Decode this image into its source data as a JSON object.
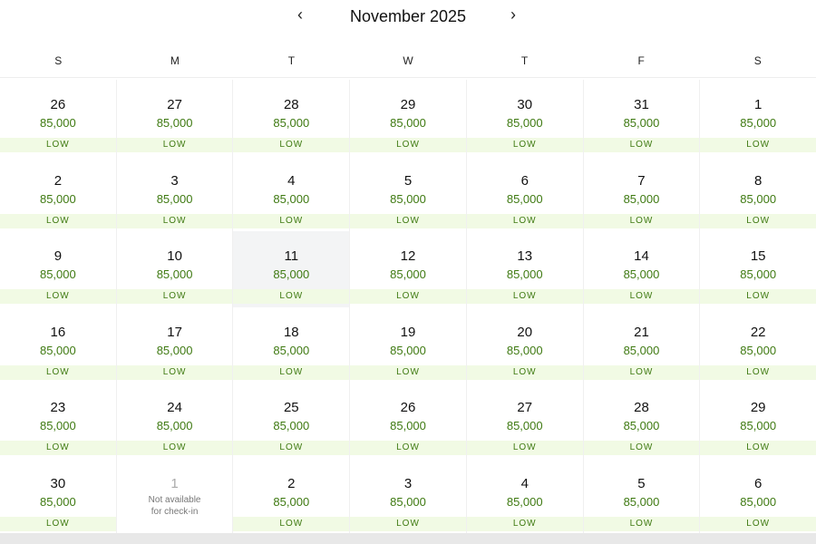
{
  "header": {
    "title": "November 2025",
    "prev_icon": "chevron-left-icon",
    "next_icon": "chevron-right-icon"
  },
  "weekdays": [
    "S",
    "M",
    "T",
    "W",
    "T",
    "F",
    "S"
  ],
  "colors": {
    "price": "#3f7a12",
    "level_bg": "#f1fae4",
    "selected_bg": "#f3f4f5"
  },
  "weeks": [
    [
      {
        "day": "26",
        "price": "85,000",
        "level": "LOW"
      },
      {
        "day": "27",
        "price": "85,000",
        "level": "LOW"
      },
      {
        "day": "28",
        "price": "85,000",
        "level": "LOW"
      },
      {
        "day": "29",
        "price": "85,000",
        "level": "LOW"
      },
      {
        "day": "30",
        "price": "85,000",
        "level": "LOW"
      },
      {
        "day": "31",
        "price": "85,000",
        "level": "LOW"
      },
      {
        "day": "1",
        "price": "85,000",
        "level": "LOW"
      }
    ],
    [
      {
        "day": "2",
        "price": "85,000",
        "level": "LOW"
      },
      {
        "day": "3",
        "price": "85,000",
        "level": "LOW"
      },
      {
        "day": "4",
        "price": "85,000",
        "level": "LOW"
      },
      {
        "day": "5",
        "price": "85,000",
        "level": "LOW"
      },
      {
        "day": "6",
        "price": "85,000",
        "level": "LOW"
      },
      {
        "day": "7",
        "price": "85,000",
        "level": "LOW"
      },
      {
        "day": "8",
        "price": "85,000",
        "level": "LOW"
      }
    ],
    [
      {
        "day": "9",
        "price": "85,000",
        "level": "LOW"
      },
      {
        "day": "10",
        "price": "85,000",
        "level": "LOW"
      },
      {
        "day": "11",
        "price": "85,000",
        "level": "LOW",
        "selected": true
      },
      {
        "day": "12",
        "price": "85,000",
        "level": "LOW"
      },
      {
        "day": "13",
        "price": "85,000",
        "level": "LOW"
      },
      {
        "day": "14",
        "price": "85,000",
        "level": "LOW"
      },
      {
        "day": "15",
        "price": "85,000",
        "level": "LOW"
      }
    ],
    [
      {
        "day": "16",
        "price": "85,000",
        "level": "LOW"
      },
      {
        "day": "17",
        "price": "85,000",
        "level": "LOW"
      },
      {
        "day": "18",
        "price": "85,000",
        "level": "LOW"
      },
      {
        "day": "19",
        "price": "85,000",
        "level": "LOW"
      },
      {
        "day": "20",
        "price": "85,000",
        "level": "LOW"
      },
      {
        "day": "21",
        "price": "85,000",
        "level": "LOW"
      },
      {
        "day": "22",
        "price": "85,000",
        "level": "LOW"
      }
    ],
    [
      {
        "day": "23",
        "price": "85,000",
        "level": "LOW"
      },
      {
        "day": "24",
        "price": "85,000",
        "level": "LOW"
      },
      {
        "day": "25",
        "price": "85,000",
        "level": "LOW"
      },
      {
        "day": "26",
        "price": "85,000",
        "level": "LOW"
      },
      {
        "day": "27",
        "price": "85,000",
        "level": "LOW"
      },
      {
        "day": "28",
        "price": "85,000",
        "level": "LOW"
      },
      {
        "day": "29",
        "price": "85,000",
        "level": "LOW"
      }
    ],
    [
      {
        "day": "30",
        "price": "85,000",
        "level": "LOW"
      },
      {
        "day": "1",
        "note": "Not available for check-in",
        "unavailable": true
      },
      {
        "day": "2",
        "price": "85,000",
        "level": "LOW"
      },
      {
        "day": "3",
        "price": "85,000",
        "level": "LOW"
      },
      {
        "day": "4",
        "price": "85,000",
        "level": "LOW"
      },
      {
        "day": "5",
        "price": "85,000",
        "level": "LOW"
      },
      {
        "day": "6",
        "price": "85,000",
        "level": "LOW"
      }
    ]
  ]
}
